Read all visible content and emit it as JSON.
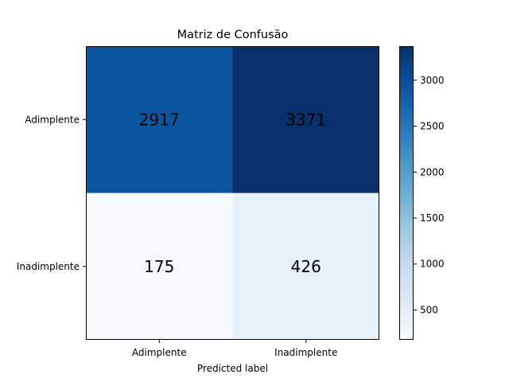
{
  "chart_data": {
    "type": "heatmap",
    "title": "Matriz de Confusão",
    "xlabel": "Predicted label",
    "ylabel": "",
    "x_categories": [
      "Adimplente",
      "Inadimplente"
    ],
    "y_categories": [
      "Adimplente",
      "Inadimplente"
    ],
    "values": [
      [
        2917,
        3371
      ],
      [
        175,
        426
      ]
    ],
    "colormap": "Blues",
    "colorbar": {
      "min": 175,
      "max": 3371,
      "ticks": [
        500,
        1000,
        1500,
        2000,
        2500,
        3000
      ]
    },
    "grid": false,
    "legend": "none"
  }
}
